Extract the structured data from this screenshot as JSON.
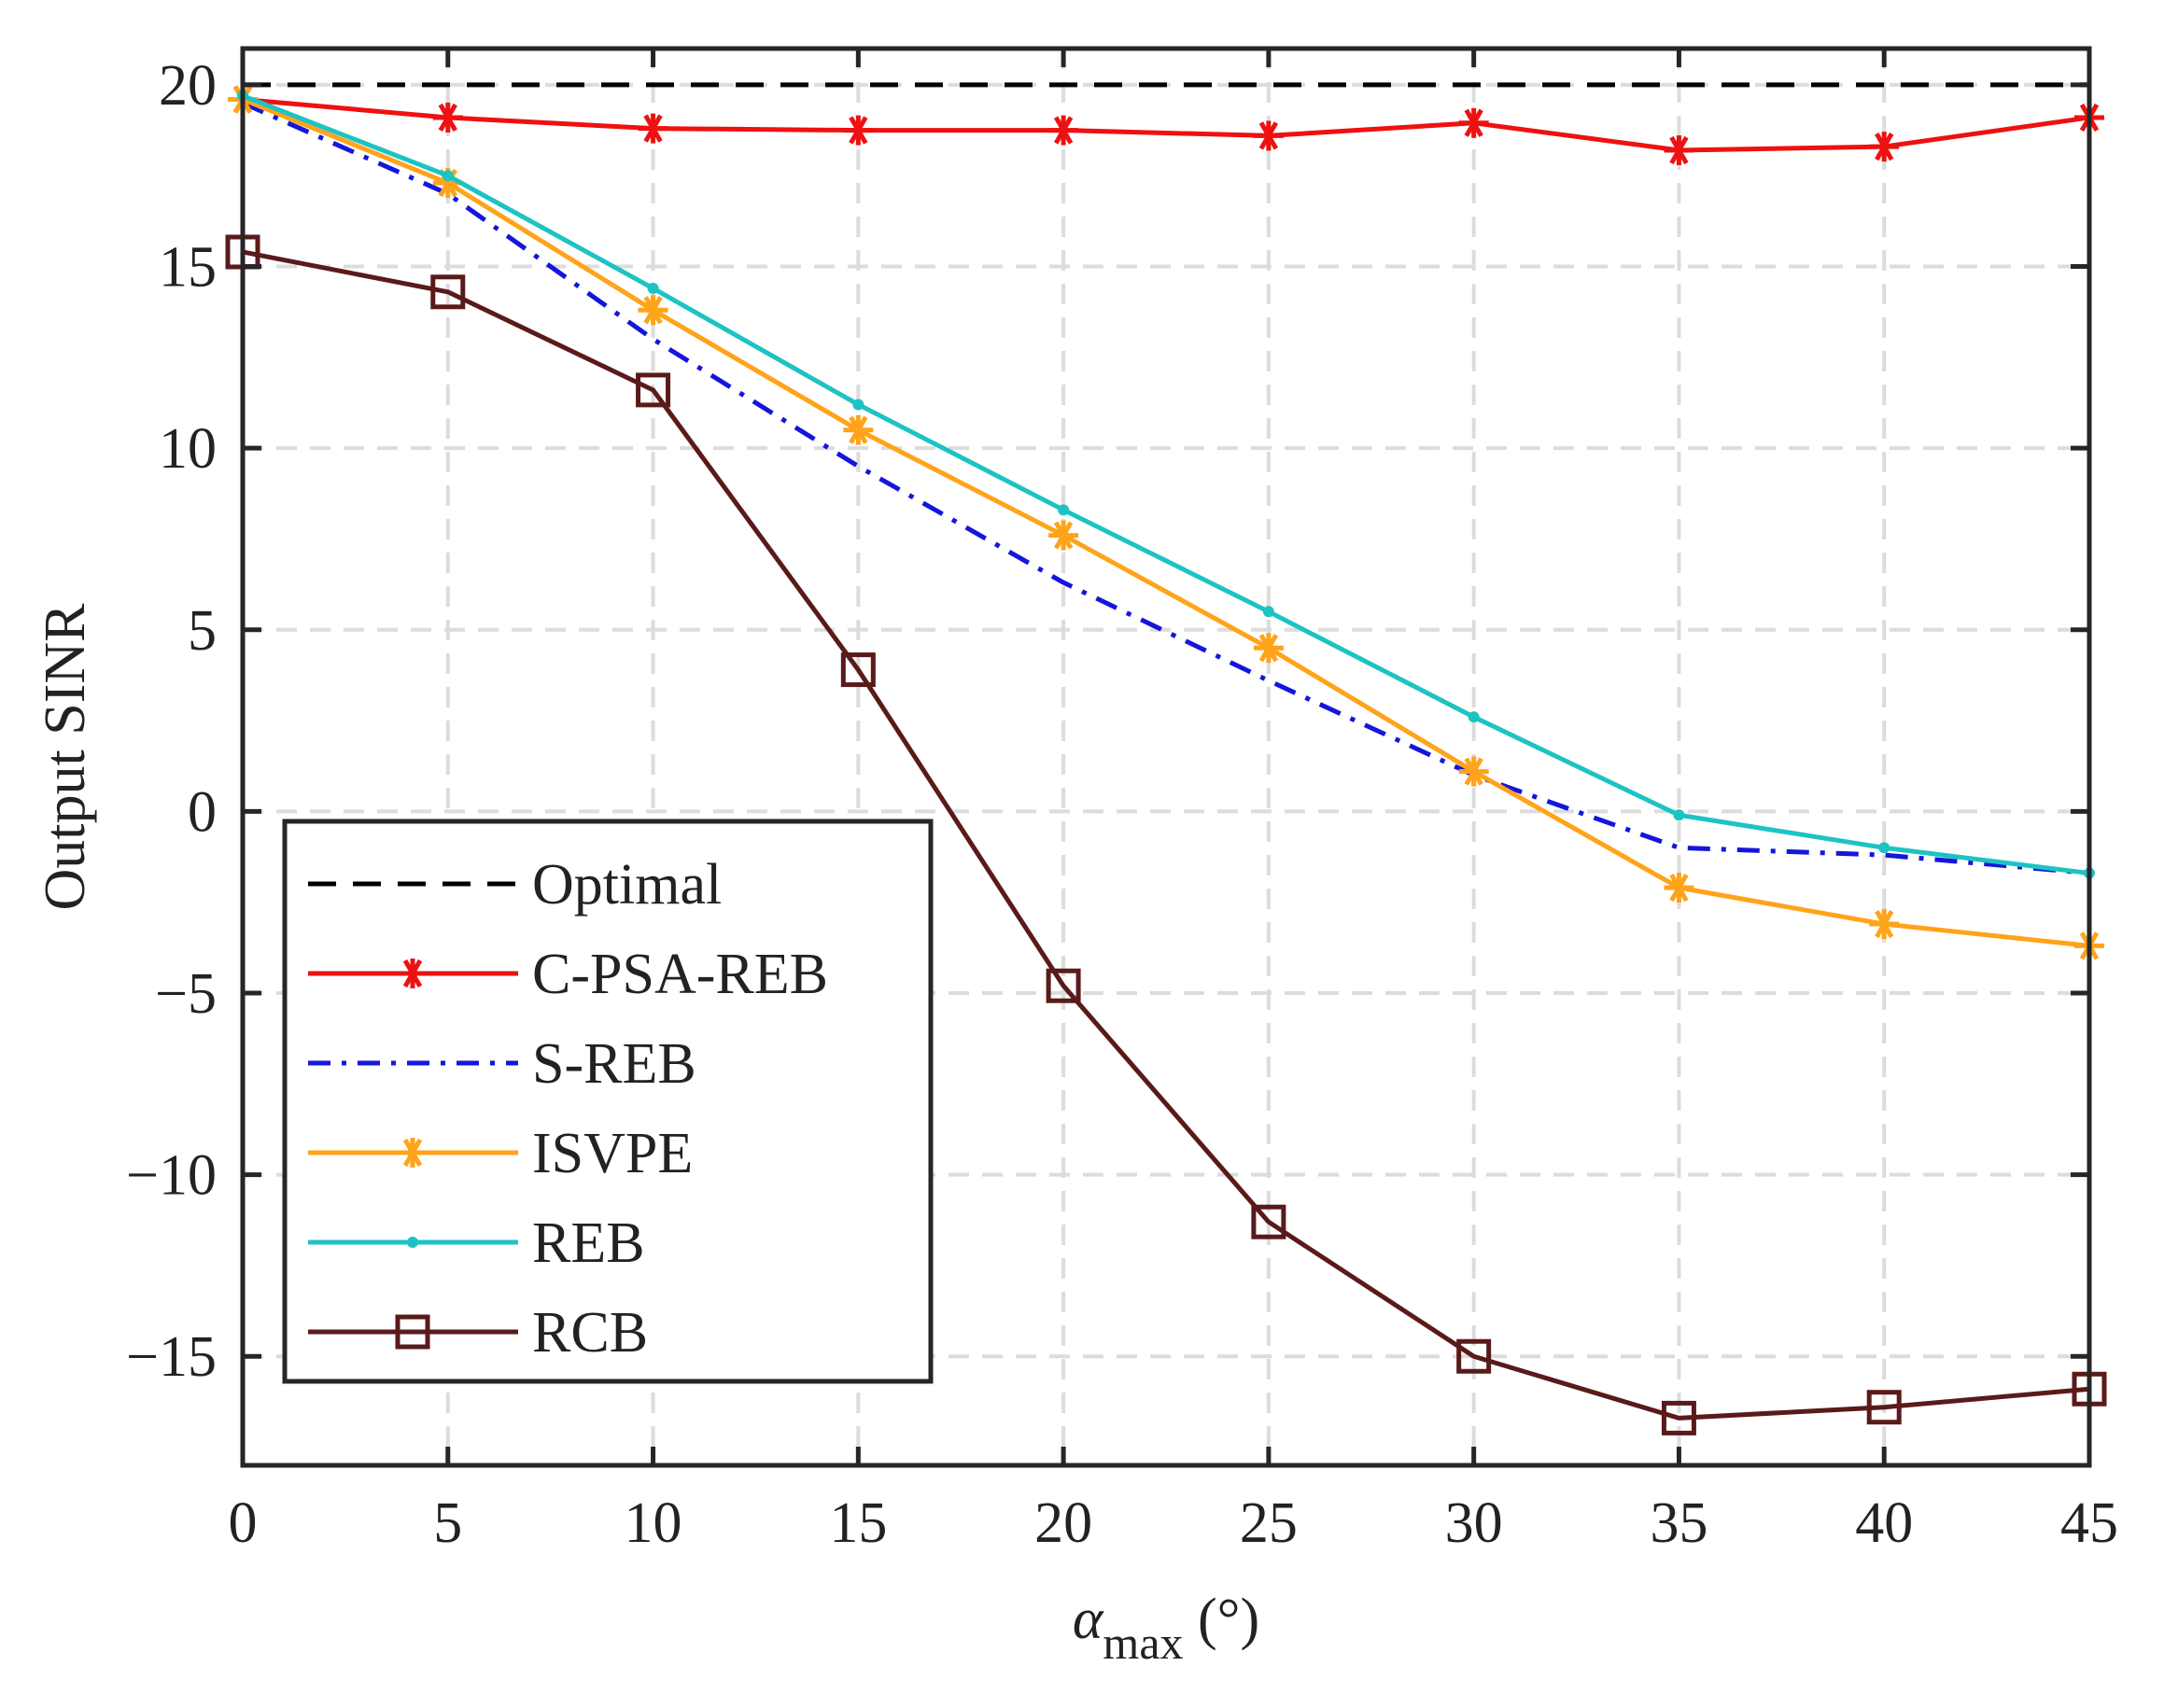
{
  "chart_data": {
    "type": "line",
    "xlabel": {
      "symbol": "α",
      "subscript": "max",
      "unit": " (°)"
    },
    "ylabel": "Output SINR",
    "xlim": [
      0,
      45
    ],
    "ylim": [
      -18,
      21
    ],
    "xticks": [
      0,
      5,
      10,
      15,
      20,
      25,
      30,
      35,
      40,
      45
    ],
    "yticks": [
      20,
      15,
      10,
      5,
      0,
      -5,
      -10,
      -15
    ],
    "ytick_labels": [
      "20",
      "15",
      "10",
      "5",
      "0",
      "−5",
      "−10",
      "−15"
    ],
    "grid": true,
    "legend_position": "bottom-left",
    "x": [
      0,
      5,
      10,
      15,
      20,
      25,
      30,
      35,
      40,
      45
    ],
    "series": [
      {
        "name": "Optimal",
        "color": "#000000",
        "dash": "dashed",
        "marker": "none",
        "values": [
          20,
          20,
          20,
          20,
          20,
          20,
          20,
          20,
          20,
          20
        ]
      },
      {
        "name": "C-PSA-REB",
        "color": "#ee1111",
        "dash": "solid",
        "marker": "asterisk",
        "values": [
          19.6,
          19.1,
          18.8,
          18.75,
          18.75,
          18.6,
          18.95,
          18.2,
          18.3,
          19.1
        ]
      },
      {
        "name": "S-REB",
        "color": "#1515dd",
        "dash": "dashdot",
        "marker": "none",
        "values": [
          19.5,
          17.0,
          13.0,
          9.5,
          6.3,
          3.6,
          1.0,
          -1.0,
          -1.2,
          -1.7
        ]
      },
      {
        "name": "ISVPE",
        "color": "#ffa31a",
        "dash": "solid",
        "marker": "asterisk",
        "values": [
          19.6,
          17.3,
          13.8,
          10.5,
          7.6,
          4.5,
          1.1,
          -2.1,
          -3.1,
          -3.7
        ]
      },
      {
        "name": "REB",
        "color": "#1dc3c3",
        "dash": "solid",
        "marker": "dot",
        "values": [
          19.7,
          17.5,
          14.4,
          11.2,
          8.3,
          5.5,
          2.6,
          -0.1,
          -1.0,
          -1.7
        ]
      },
      {
        "name": "RCB",
        "color": "#5a1a1a",
        "dash": "solid",
        "marker": "square",
        "values": [
          15.4,
          14.3,
          11.6,
          3.9,
          -4.8,
          -11.3,
          -15.0,
          -16.7,
          -16.4,
          -15.9
        ]
      }
    ]
  }
}
